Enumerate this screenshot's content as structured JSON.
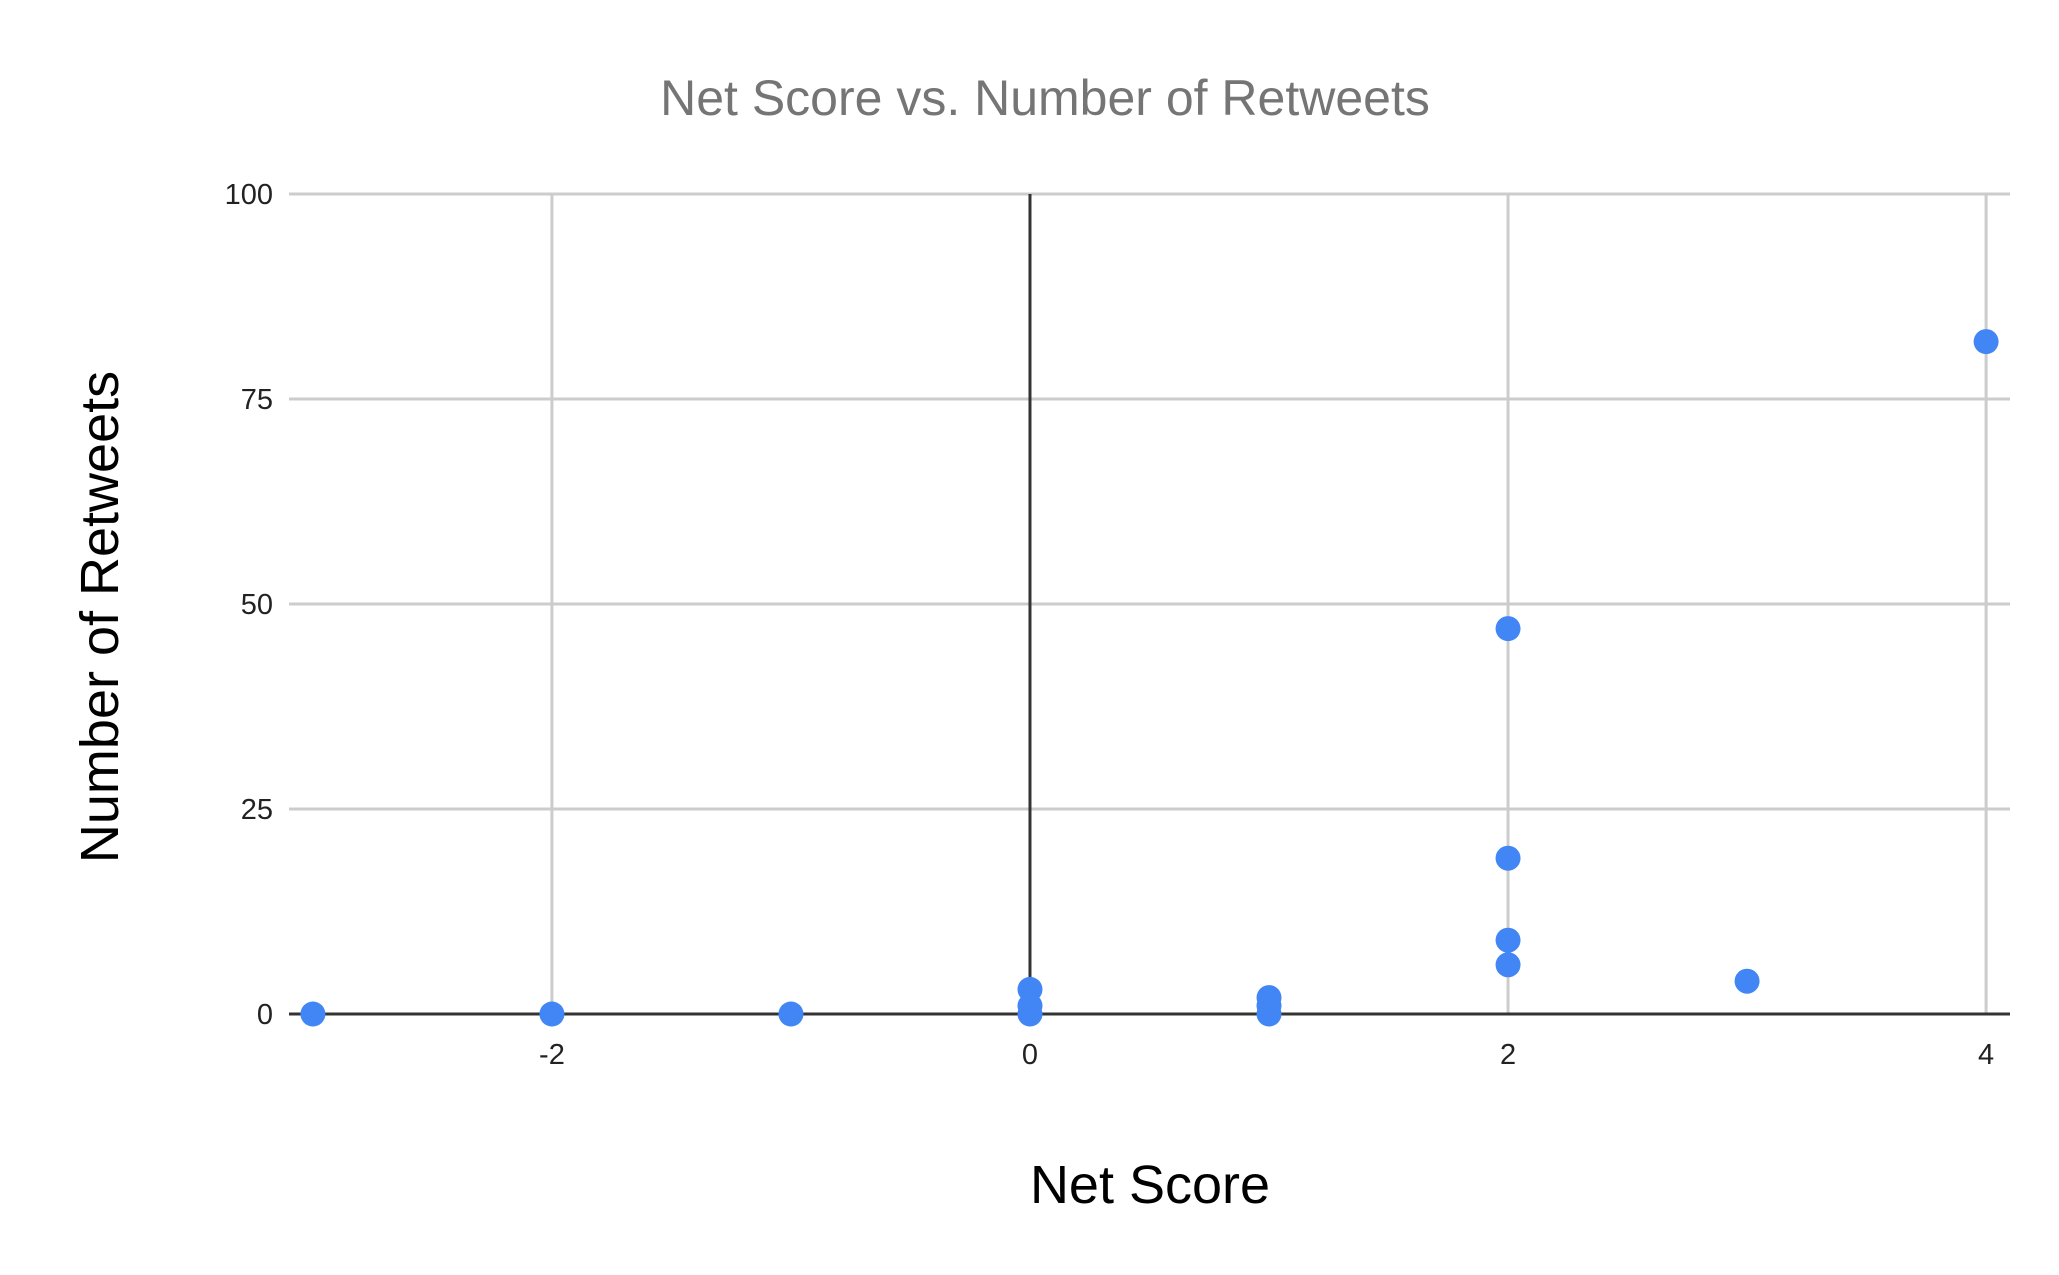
{
  "chart_data": {
    "type": "scatter",
    "title": "Net Score vs. Number of Retweets",
    "xlabel": "Net Score",
    "ylabel": "Number of Retweets",
    "xlim": [
      -3.1,
      4.1
    ],
    "ylim": [
      0,
      100
    ],
    "x_ticks": [
      -2,
      0,
      2,
      4
    ],
    "y_ticks": [
      0,
      25,
      50,
      75,
      100
    ],
    "x_tick_labels": [
      "-2",
      "0",
      "2",
      "4"
    ],
    "y_tick_labels": [
      "0",
      "25",
      "50",
      "75",
      "100"
    ],
    "grid": true,
    "legend": "none",
    "series": [
      {
        "color": "#4285f4",
        "points": [
          {
            "x": -3,
            "y": 0
          },
          {
            "x": -2,
            "y": 0
          },
          {
            "x": -1,
            "y": 0
          },
          {
            "x": 0,
            "y": 0
          },
          {
            "x": 0,
            "y": 1
          },
          {
            "x": 0,
            "y": 3
          },
          {
            "x": 1,
            "y": 0
          },
          {
            "x": 1,
            "y": 1
          },
          {
            "x": 1,
            "y": 2
          },
          {
            "x": 2,
            "y": 6
          },
          {
            "x": 2,
            "y": 9
          },
          {
            "x": 2,
            "y": 19
          },
          {
            "x": 2,
            "y": 47
          },
          {
            "x": 3,
            "y": 4
          },
          {
            "x": 4,
            "y": 82
          }
        ]
      }
    ]
  },
  "colors": {
    "gridline": "#cccccc",
    "zero_axis": "#333333",
    "title": "#757575",
    "marker": "#4285f4"
  }
}
